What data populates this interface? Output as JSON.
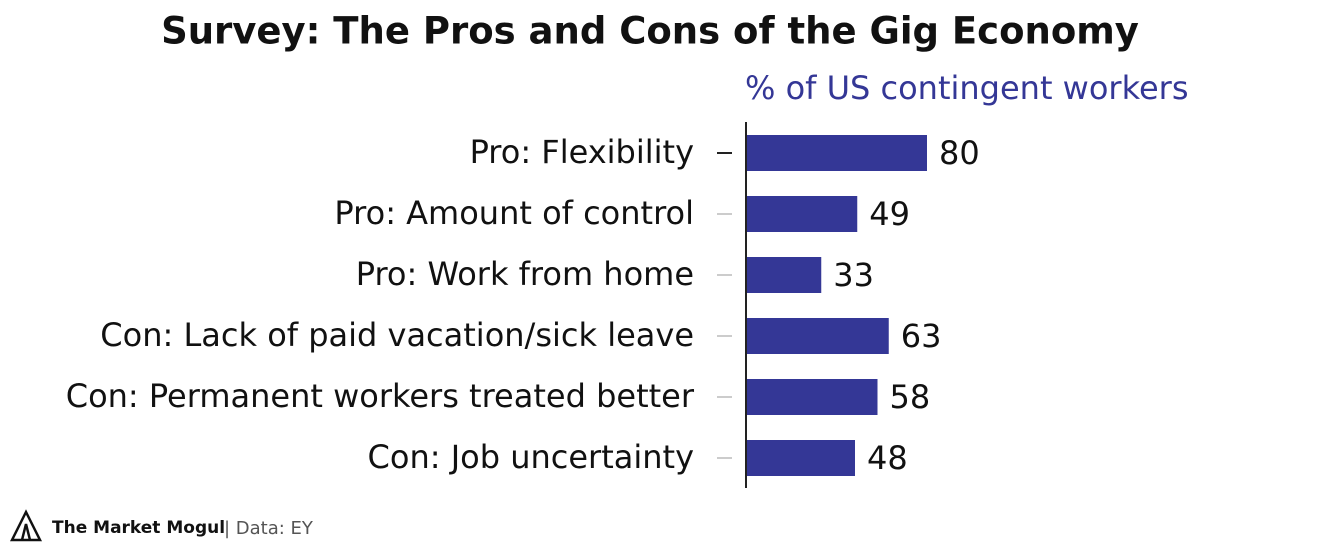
{
  "chart_data": {
    "type": "barh",
    "title": "Survey: The Pros and Cons of the Gig Economy",
    "subtitle": "% of US contingent workers",
    "categories": [
      "Pro: Flexibility",
      "Pro: Amount of control",
      "Pro: Work from home",
      "Con: Lack of paid vacation/sick leave",
      "Con: Permanent workers treated better",
      "Con: Job uncertainty"
    ],
    "values": [
      80,
      49,
      33,
      63,
      58,
      48
    ],
    "color": "#343796"
  },
  "footer": {
    "brand": "The Market Mogul",
    "source": "| Data: EY"
  }
}
